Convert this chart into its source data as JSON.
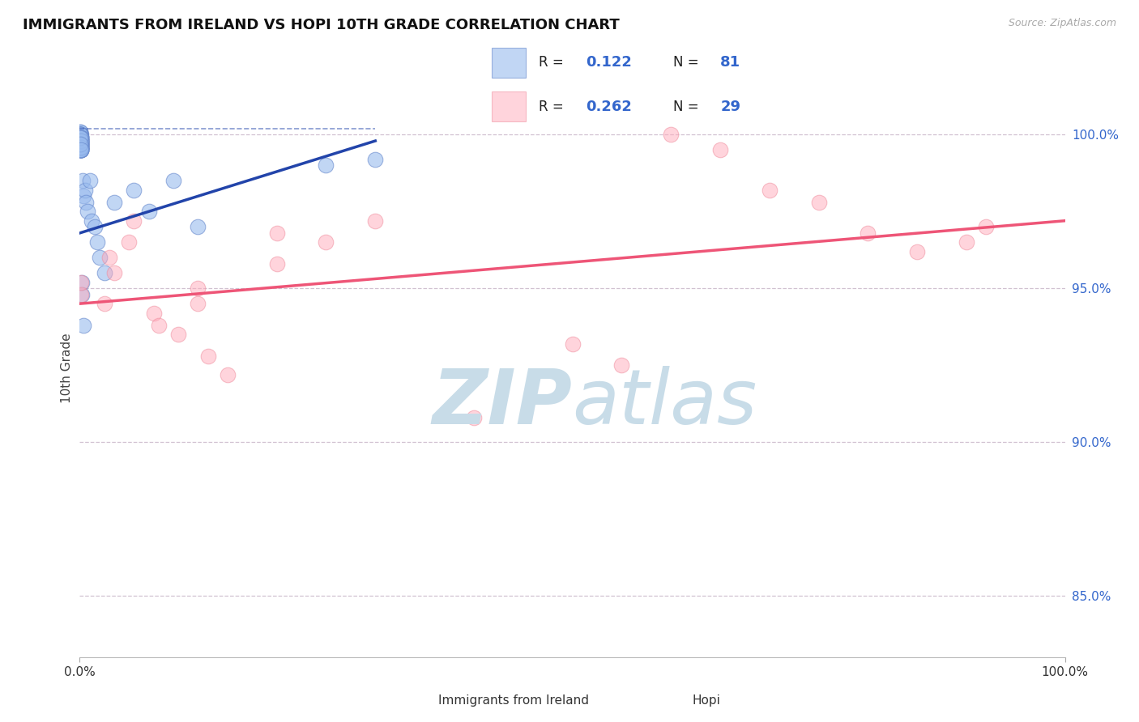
{
  "title": "IMMIGRANTS FROM IRELAND VS HOPI 10TH GRADE CORRELATION CHART",
  "source_text": "Source: ZipAtlas.com",
  "ylabel": "10th Grade",
  "xlim": [
    0,
    100
  ],
  "ylim": [
    83.0,
    101.8
  ],
  "ytick_labels": [
    "85.0%",
    "90.0%",
    "95.0%",
    "100.0%"
  ],
  "ytick_values": [
    85,
    90,
    95,
    100
  ],
  "legend_r1": "0.122",
  "legend_n1": "81",
  "legend_r2": "0.262",
  "legend_n2": "29",
  "blue_color": "#99BBEE",
  "blue_edge": "#6688CC",
  "pink_color": "#FFAABB",
  "pink_edge": "#EE8899",
  "trend_blue": "#2244AA",
  "trend_pink": "#EE5577",
  "grid_color": "#CCBBCC",
  "right_tick_color": "#3366CC",
  "legend_text_color": "#3366CC",
  "watermark_color": "#C8DCE8",
  "background_color": "#FFFFFF",
  "blue_scatter_x": [
    0.05,
    0.08,
    0.1,
    0.05,
    0.09,
    0.11,
    0.07,
    0.12,
    0.06,
    0.1,
    0.13,
    0.08,
    0.09,
    0.11,
    0.07,
    0.06,
    0.1,
    0.09,
    0.12,
    0.08,
    0.05,
    0.09,
    0.11,
    0.07,
    0.1,
    0.06,
    0.08,
    0.1,
    0.09,
    0.12,
    0.07,
    0.05,
    0.1,
    0.11,
    0.08,
    0.06,
    0.09,
    0.1,
    0.07,
    0.09,
    0.12,
    0.08,
    0.06,
    0.09,
    0.05,
    0.1,
    0.07,
    0.11,
    0.09,
    0.08,
    0.13,
    0.06,
    0.09,
    0.1,
    0.07,
    0.09,
    0.11,
    0.08,
    0.05,
    0.09,
    0.3,
    0.4,
    0.5,
    0.6,
    0.8,
    1.0,
    1.2,
    1.5,
    1.8,
    2.0,
    2.5,
    3.5,
    5.5,
    7.0,
    9.5,
    0.18,
    0.25,
    0.35,
    25.0,
    30.0,
    12.0
  ],
  "blue_scatter_y": [
    100.1,
    99.9,
    99.7,
    100.0,
    99.8,
    99.6,
    99.9,
    100.0,
    99.8,
    99.5,
    99.9,
    100.1,
    99.7,
    99.5,
    99.8,
    100.0,
    99.6,
    99.9,
    99.7,
    100.0,
    99.5,
    99.8,
    99.6,
    100.0,
    99.7,
    99.9,
    99.5,
    99.8,
    99.6,
    99.9,
    100.0,
    99.7,
    99.5,
    99.8,
    99.6,
    99.9,
    99.7,
    99.5,
    100.0,
    99.8,
    99.6,
    99.9,
    99.7,
    99.5,
    99.8,
    99.6,
    100.0,
    99.7,
    99.9,
    99.5,
    99.8,
    99.6,
    99.9,
    99.7,
    99.5,
    99.8,
    99.6,
    99.9,
    99.7,
    99.5,
    98.5,
    98.0,
    98.2,
    97.8,
    97.5,
    98.5,
    97.2,
    97.0,
    96.5,
    96.0,
    95.5,
    97.8,
    98.2,
    97.5,
    98.5,
    95.2,
    94.8,
    93.8,
    99.0,
    99.2,
    97.0
  ],
  "pink_scatter_x": [
    0.1,
    0.12,
    2.5,
    3.5,
    5.0,
    5.5,
    7.5,
    10.0,
    12.0,
    13.0,
    15.0,
    20.0,
    25.0,
    30.0,
    3.0,
    40.0,
    50.0,
    55.0,
    60.0,
    65.0,
    70.0,
    75.0,
    80.0,
    85.0,
    90.0,
    92.0,
    8.0,
    12.0,
    20.0
  ],
  "pink_scatter_y": [
    94.8,
    95.2,
    94.5,
    95.5,
    96.5,
    97.2,
    94.2,
    93.5,
    95.0,
    92.8,
    92.2,
    95.8,
    96.5,
    97.2,
    96.0,
    90.8,
    93.2,
    92.5,
    100.0,
    99.5,
    98.2,
    97.8,
    96.8,
    96.2,
    96.5,
    97.0,
    93.8,
    94.5,
    96.8
  ],
  "blue_trend_x0": 0,
  "blue_trend_x1": 30,
  "blue_trend_y0": 96.8,
  "blue_trend_y1": 99.8,
  "blue_dash_x0": 0,
  "blue_dash_x1": 30,
  "blue_dash_y": 100.2,
  "pink_trend_x0": 0,
  "pink_trend_x1": 100,
  "pink_trend_y0": 94.5,
  "pink_trend_y1": 97.2
}
